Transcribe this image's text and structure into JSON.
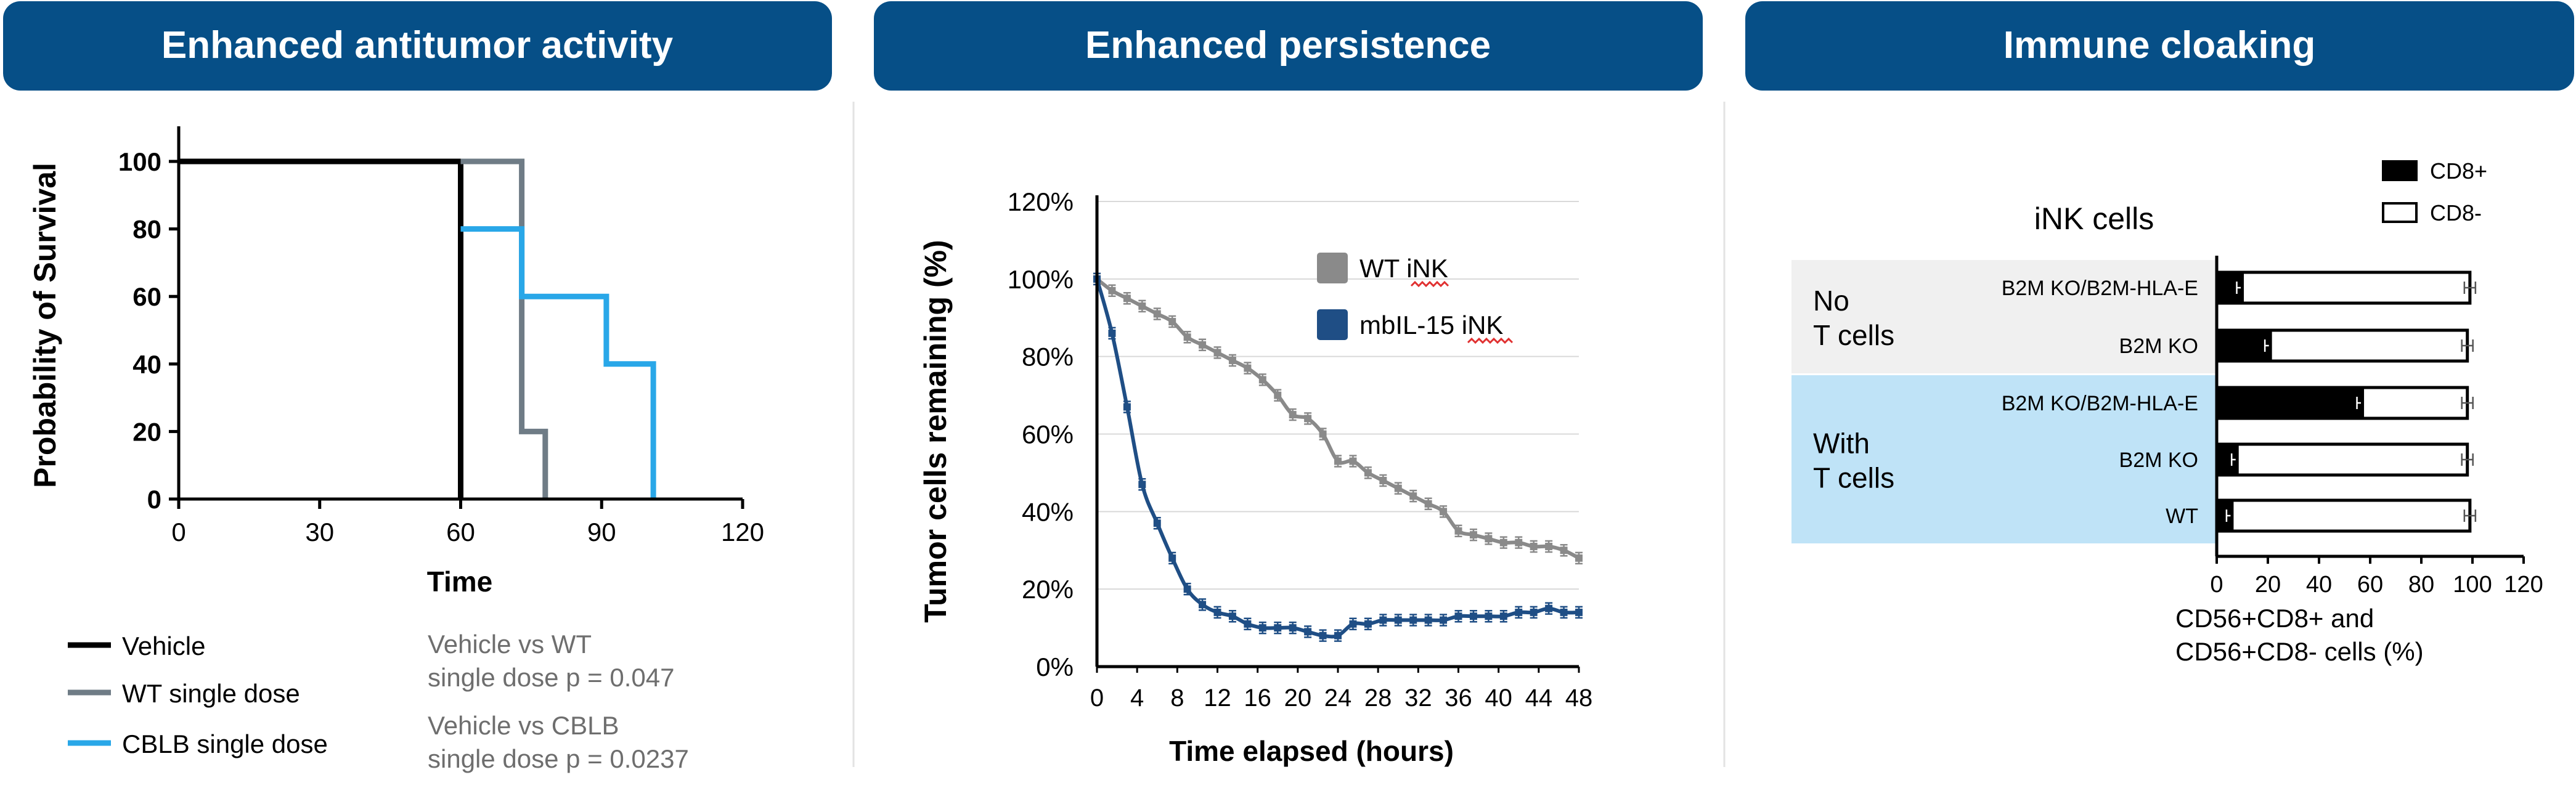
{
  "colors": {
    "banner": "#064f87",
    "banner_text": "#ffffff",
    "axis": "#000000",
    "grid": "#d9d9d9",
    "vehicle": "#000000",
    "wt_single": "#6f7c86",
    "cblb_single": "#29a7e8",
    "wt_ink": "#8a8a8a",
    "mbil15_ink": "#1f4e85",
    "no_t_bg": "#f0f0f0",
    "with_t_bg": "#bfe3f7",
    "note_text": "#6e6e6e",
    "squiggle": "#e03030"
  },
  "panels": [
    {
      "title": "Enhanced antitumor activity"
    },
    {
      "title": "Enhanced persistence"
    },
    {
      "title": "Immune cloaking"
    }
  ],
  "chart_data": [
    {
      "type": "line",
      "step": true,
      "ylabel": "Probability of Survival",
      "xlabel": "Time",
      "xlim": [
        0,
        120
      ],
      "ylim": [
        0,
        100
      ],
      "xticks": [
        "0",
        "30",
        "60",
        "90",
        "120"
      ],
      "yticks": [
        "0",
        "20",
        "40",
        "60",
        "80",
        "100"
      ],
      "series": [
        {
          "name": "Vehicle",
          "color": "#000000",
          "points": [
            [
              0,
              100
            ],
            [
              60,
              100
            ],
            [
              60,
              0
            ]
          ]
        },
        {
          "name": "WT single dose",
          "color": "#6f7c86",
          "points": [
            [
              60,
              100
            ],
            [
              73,
              100
            ],
            [
              73,
              20
            ],
            [
              78,
              20
            ],
            [
              78,
              0
            ]
          ]
        },
        {
          "name": "CBLB single dose",
          "color": "#29a7e8",
          "points": [
            [
              60,
              80
            ],
            [
              73,
              80
            ],
            [
              73,
              60
            ],
            [
              91,
              60
            ],
            [
              91,
              40
            ],
            [
              101,
              40
            ],
            [
              101,
              0
            ]
          ]
        }
      ],
      "annotations": [
        {
          "line1": "Vehicle vs WT",
          "line2": "single dose p = 0.047"
        },
        {
          "line1": "Vehicle vs CBLB",
          "line2": "single dose p = 0.0237"
        }
      ]
    },
    {
      "type": "line",
      "ylabel": "Tumor cells remaining (%)",
      "xlabel": "Time elapsed (hours)",
      "xlim": [
        0,
        48
      ],
      "ylim": [
        0,
        120
      ],
      "grid": true,
      "xticks": [
        "0",
        "4",
        "8",
        "12",
        "16",
        "20",
        "24",
        "28",
        "32",
        "36",
        "40",
        "44",
        "48"
      ],
      "yticks": [
        "0%",
        "20%",
        "40%",
        "60%",
        "80%",
        "100%",
        "120%"
      ],
      "x": [
        0,
        1.5,
        3,
        4.5,
        6,
        7.5,
        9,
        10.5,
        12,
        13.5,
        15,
        16.5,
        18,
        19.5,
        21,
        22.5,
        24,
        25.5,
        27,
        28.5,
        30,
        31.5,
        33,
        34.5,
        36,
        37.5,
        39,
        40.5,
        42,
        43.5,
        45,
        46.5,
        48
      ],
      "series": [
        {
          "name": "WT iNK",
          "color": "#8a8a8a",
          "values": [
            100,
            97,
            95,
            93,
            91,
            89,
            85,
            83,
            81,
            79,
            77,
            74,
            70,
            65,
            64,
            60,
            53,
            53,
            50,
            48,
            46,
            44,
            42,
            40,
            35,
            34,
            33,
            32,
            32,
            31,
            31,
            30,
            28
          ]
        },
        {
          "name": "mbIL-15 iNK",
          "color": "#1f4e85",
          "values": [
            100,
            86,
            67,
            47,
            37,
            28,
            20,
            16,
            14,
            13,
            11,
            10,
            10,
            10,
            9,
            8,
            8,
            11,
            11,
            12,
            12,
            12,
            12,
            12,
            13,
            13,
            13,
            13,
            14,
            14,
            15,
            14,
            14
          ]
        }
      ],
      "legend": "top-right"
    },
    {
      "type": "bar",
      "orientation": "horizontal",
      "stacked": true,
      "title": "iNK cells",
      "xlabel_line1": "CD56+CD8+ and",
      "xlabel_line2": "CD56+CD8- cells (%)",
      "xlim": [
        0,
        120
      ],
      "xticks": [
        "0",
        "20",
        "40",
        "60",
        "80",
        "100",
        "120"
      ],
      "categories": [
        "B2M KO/B2M-HLA-E",
        "B2M KO",
        "B2M KO/B2M-HLA-E",
        "B2M KO",
        "WT"
      ],
      "groups": [
        {
          "label_line1": "No",
          "label_line2": "T cells",
          "color": "#f0f0f0",
          "rows": [
            0,
            1
          ]
        },
        {
          "label_line1": "With",
          "label_line2": "T cells",
          "color": "#bfe3f7",
          "rows": [
            2,
            3,
            4
          ]
        }
      ],
      "series": [
        {
          "name": "CD8+",
          "color": "#000000",
          "values": [
            10,
            21,
            57,
            8,
            6
          ]
        },
        {
          "name": "CD8-",
          "color": "#ffffff",
          "values": [
            89,
            77,
            41,
            90,
            93
          ]
        }
      ],
      "legend": "top-right"
    }
  ]
}
